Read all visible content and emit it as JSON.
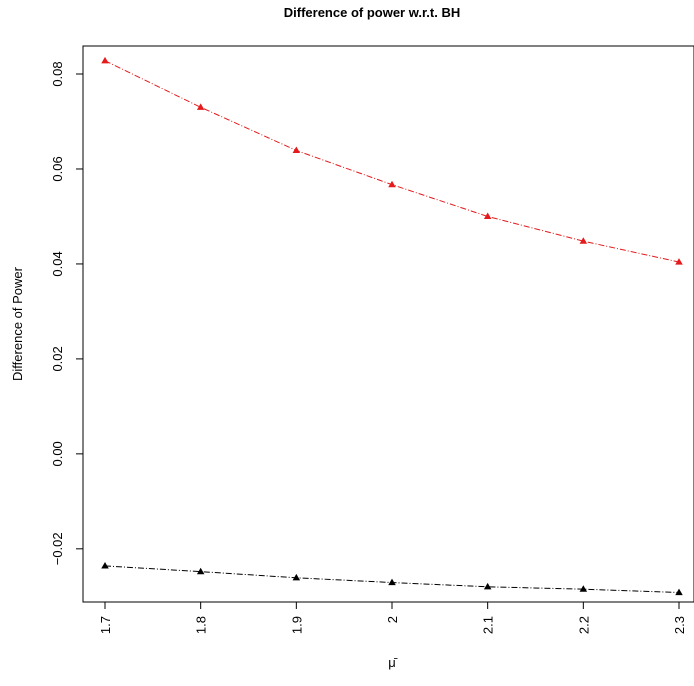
{
  "chart_data": {
    "type": "line",
    "title": "Difference of power w.r.t. BH",
    "xlabel": "μ̄",
    "ylabel": "Difference of Power",
    "x": [
      1.7,
      1.8,
      1.9,
      2.0,
      2.1,
      2.2,
      2.3
    ],
    "x_tick_labels": [
      "1.7",
      "1.8",
      "1.9",
      "2",
      "2.1",
      "2.2",
      "2.3"
    ],
    "y_ticks": [
      -0.02,
      0.0,
      0.02,
      0.04,
      0.06,
      0.08
    ],
    "y_tick_labels": [
      "−0.02",
      "0.00",
      "0.02",
      "0.04",
      "0.06",
      "0.08"
    ],
    "xlim": [
      1.7,
      2.3
    ],
    "ylim": [
      -0.0312,
      0.0859
    ],
    "grid": false,
    "legend": "none",
    "series": [
      {
        "color": "#e41a1c",
        "marker": "triangle",
        "line_style": "dash-dot",
        "values": [
          0.0828,
          0.073,
          0.0639,
          0.0567,
          0.05,
          0.0448,
          0.0404
        ]
      },
      {
        "color": "#000000",
        "marker": "triangle",
        "line_style": "dash-dot",
        "values": [
          -0.0236,
          -0.0248,
          -0.0261,
          -0.0271,
          -0.028,
          -0.0285,
          -0.0292
        ]
      }
    ]
  }
}
